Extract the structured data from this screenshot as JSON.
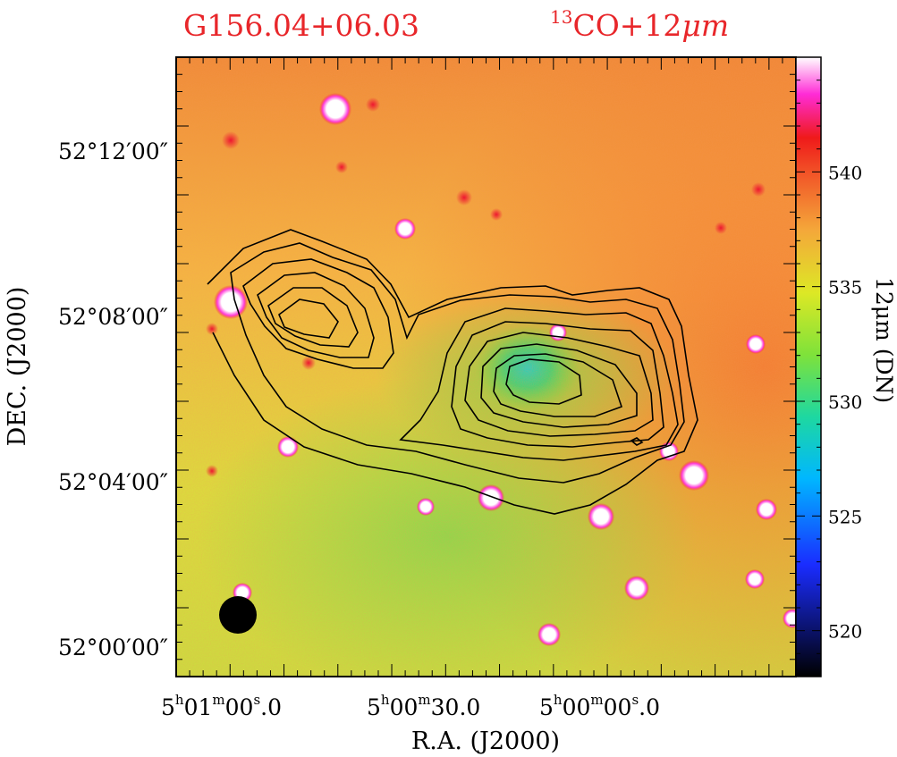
{
  "title_source": "G156.04+06.03",
  "title_tracer": {
    "superscript": "13",
    "text": "CO+12",
    "unit": "μm"
  },
  "x_axis": {
    "label": "R.A.  (J2000)",
    "ticks": [
      {
        "h": "5",
        "m": "01",
        "s": "00",
        "frac": "0"
      },
      {
        "h": "5",
        "m": "00",
        "s": "30",
        "frac": "0"
      },
      {
        "h": "5",
        "m": "00",
        "s": "00",
        "frac": "0"
      }
    ]
  },
  "y_axis": {
    "label": "DEC.  (J2000)",
    "ticks": [
      "52°12′00″",
      "52°08′00″",
      "52°04′00″",
      "52°00′00″"
    ]
  },
  "colorbar": {
    "label": "12μm (DN)",
    "ticks": [
      "540",
      "535",
      "530",
      "525",
      "520"
    ],
    "range": [
      518,
      545
    ]
  },
  "colors": {
    "title": "#e8262a",
    "background_map": "#f4a23a",
    "cold_core": "#25d0b0",
    "contour": "#000000"
  }
}
